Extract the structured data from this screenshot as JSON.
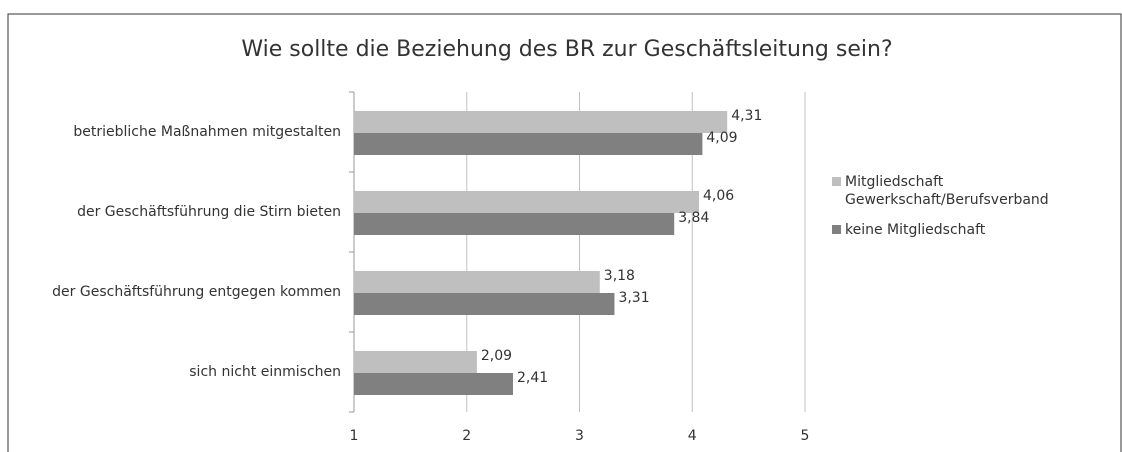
{
  "chart_data": {
    "type": "bar",
    "orientation": "horizontal",
    "title": "Wie sollte die Beziehung des BR zur Geschäftsleitung sein?",
    "categories": [
      "betriebliche Maßnahmen mitgestalten",
      "der Geschäftsführung die Stirn bieten",
      "der Geschäftsführung entgegen kommen",
      "sich nicht einmischen"
    ],
    "series": [
      {
        "name": "Mitgliedschaft Gewerkschaft/Berufsverband",
        "color": "#bfbfbf",
        "values": [
          4.31,
          4.06,
          3.18,
          2.09
        ],
        "value_labels": [
          "4,31",
          "4,06",
          "3,18",
          "2,09"
        ]
      },
      {
        "name": "keine Mitgliedschaft",
        "color": "#808080",
        "values": [
          4.09,
          3.84,
          3.31,
          2.41
        ],
        "value_labels": [
          "4,09",
          "3,84",
          "3,31",
          "2,41"
        ]
      }
    ],
    "xlim": [
      1,
      5
    ],
    "xticks": [
      1,
      2,
      3,
      4,
      5
    ],
    "grid": true,
    "legend": "right"
  }
}
